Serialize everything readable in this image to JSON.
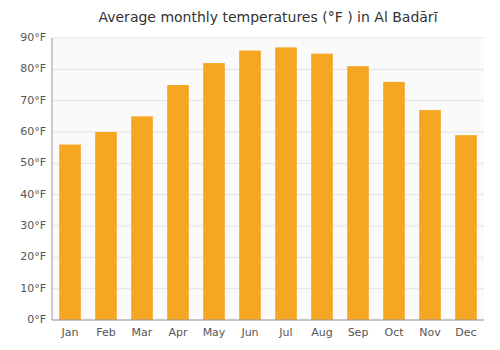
{
  "chart_data": {
    "type": "bar",
    "title": "Average monthly temperatures (°F ) in Al Badārī",
    "categories": [
      "Jan",
      "Feb",
      "Mar",
      "Apr",
      "May",
      "Jun",
      "Jul",
      "Aug",
      "Sep",
      "Oct",
      "Nov",
      "Dec"
    ],
    "values": [
      56,
      60,
      65,
      75,
      82,
      86,
      87,
      85,
      81,
      76,
      67,
      59
    ],
    "color": "#F5A623",
    "ylim": [
      0,
      90
    ],
    "yticks": [
      {
        "value": 0,
        "label": "0°F"
      },
      {
        "value": 10,
        "label": "10°F"
      },
      {
        "value": 20,
        "label": "20°F"
      },
      {
        "value": 30,
        "label": "30°F"
      },
      {
        "value": 40,
        "label": "40°F"
      },
      {
        "value": 50,
        "label": "50°F"
      },
      {
        "value": 60,
        "label": "60°F"
      },
      {
        "value": 70,
        "label": "70°F"
      },
      {
        "value": 80,
        "label": "80°F"
      },
      {
        "value": 90,
        "label": "90°F"
      }
    ],
    "grid": true
  }
}
